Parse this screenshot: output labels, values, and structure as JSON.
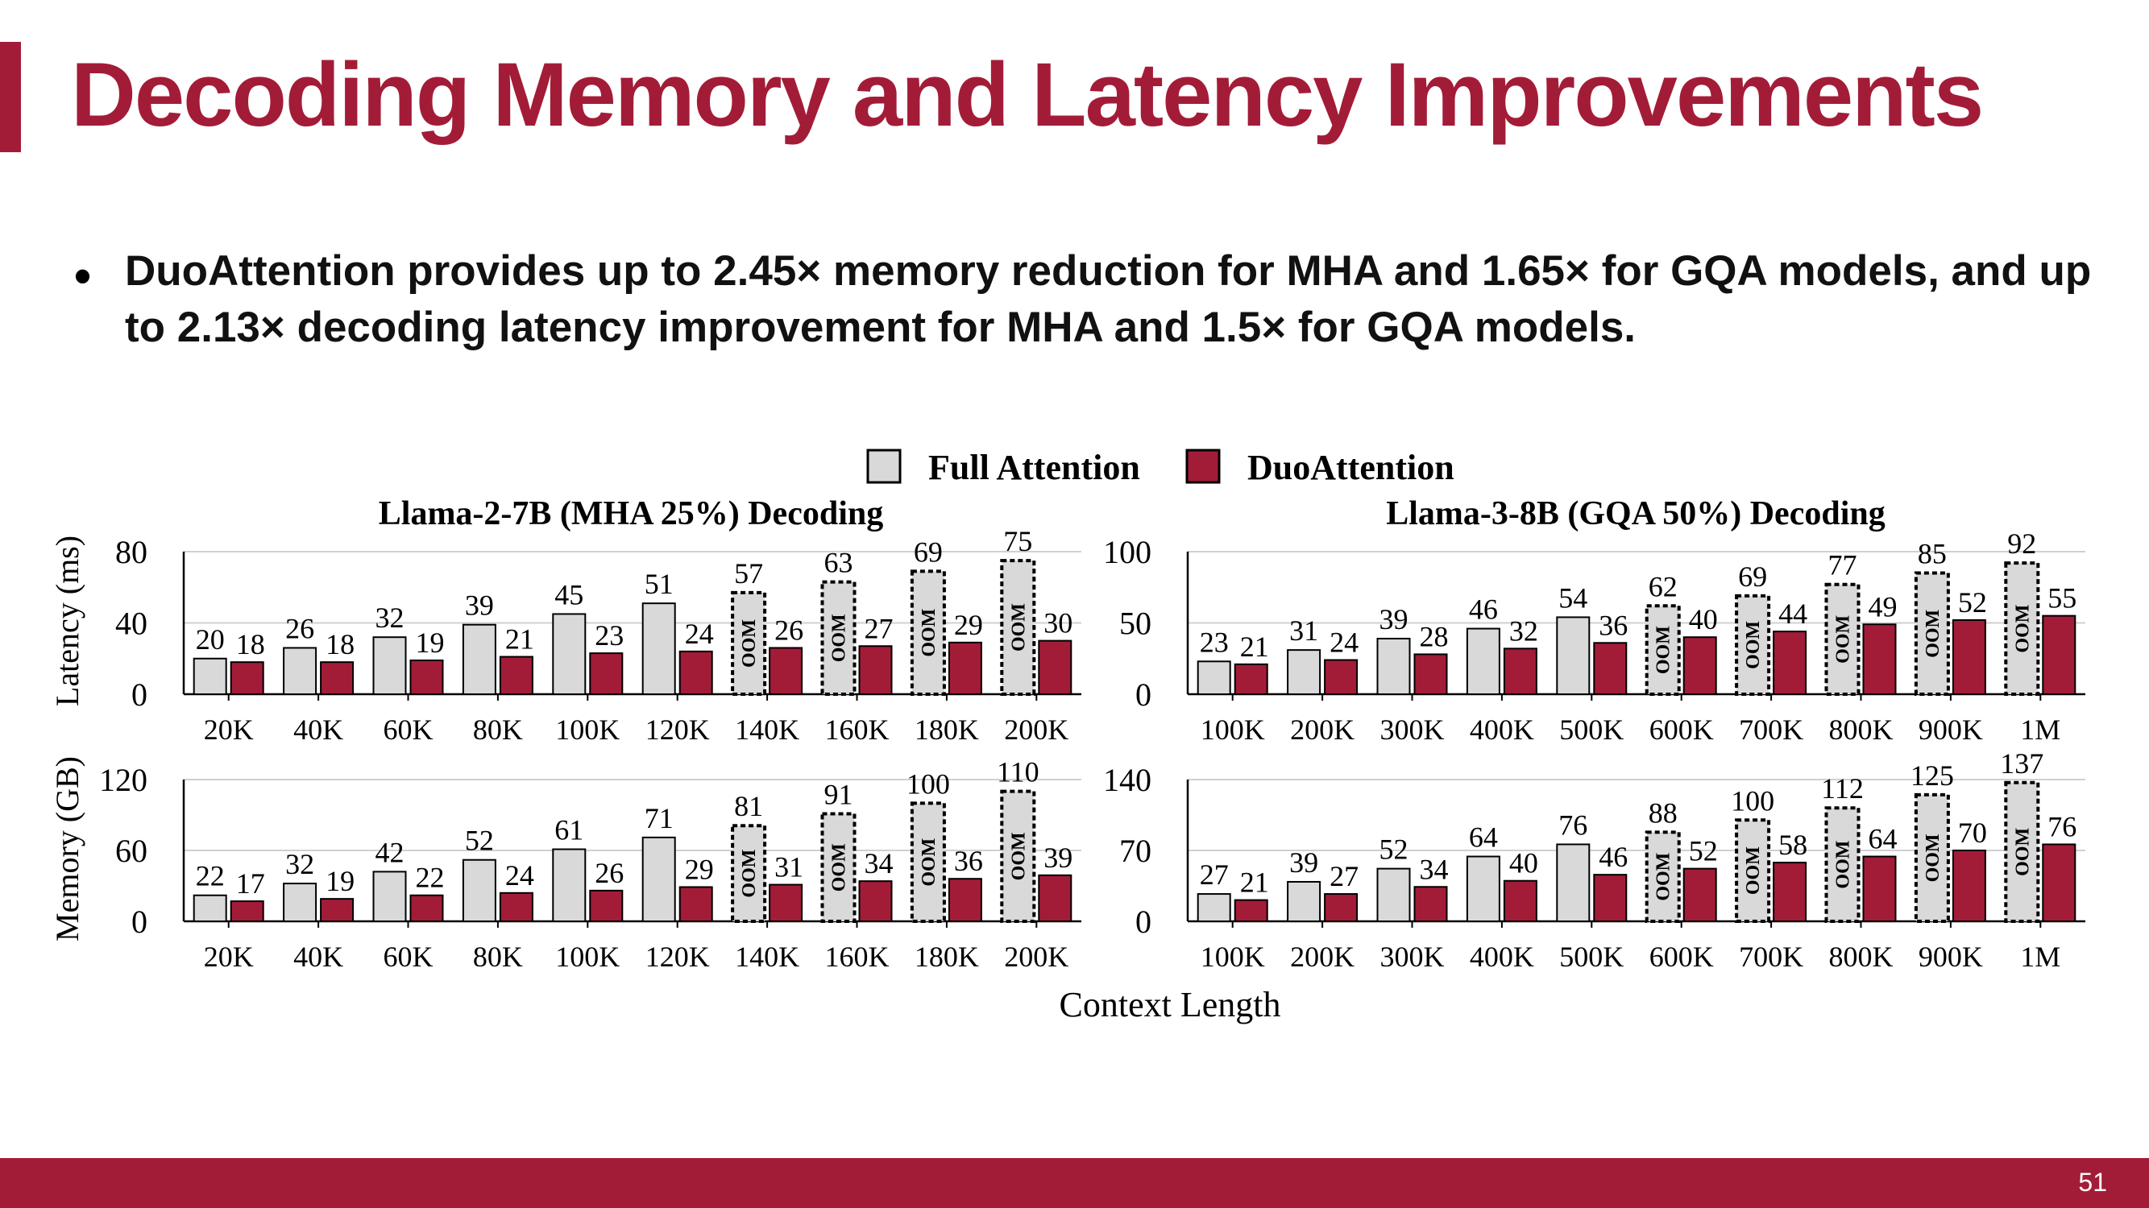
{
  "slide": {
    "title": "Decoding Memory and Latency Improvements",
    "bullet": "DuoAttention provides up to 2.45× memory reduction for MHA and 1.65× for GQA models, and up to 2.13× decoding latency improvement for MHA and 1.5× for GQA models.",
    "page_number": "51"
  },
  "colors": {
    "accent": "#a31c37",
    "full_fill": "#d9d9d9",
    "duo_fill": "#a31c37"
  },
  "chart_data": [
    {
      "type": "bar",
      "id": "llama2-latency",
      "title": "Llama-2-7B (MHA 25%) Decoding",
      "ylabel": "Latency (ms)",
      "xlabel": "Context Length",
      "categories": [
        "20K",
        "40K",
        "60K",
        "80K",
        "100K",
        "120K",
        "140K",
        "160K",
        "180K",
        "200K"
      ],
      "ylim": [
        0,
        80
      ],
      "yticks": [
        0,
        40,
        80
      ],
      "oom_label": "OOM",
      "series": [
        {
          "name": "Full Attention",
          "values": [
            20,
            26,
            32,
            39,
            45,
            51,
            57,
            63,
            69,
            75
          ],
          "oom": [
            false,
            false,
            false,
            false,
            false,
            false,
            true,
            true,
            true,
            true
          ]
        },
        {
          "name": "DuoAttention",
          "values": [
            18,
            18,
            19,
            21,
            23,
            24,
            26,
            27,
            29,
            30
          ]
        }
      ]
    },
    {
      "type": "bar",
      "id": "llama3-latency",
      "title": "Llama-3-8B (GQA 50%) Decoding",
      "ylabel": "Latency (ms)",
      "xlabel": "Context Length",
      "categories": [
        "100K",
        "200K",
        "300K",
        "400K",
        "500K",
        "600K",
        "700K",
        "800K",
        "900K",
        "1M"
      ],
      "ylim": [
        0,
        100
      ],
      "yticks": [
        0,
        50,
        100
      ],
      "oom_label": "OOM",
      "series": [
        {
          "name": "Full Attention",
          "values": [
            23,
            31,
            39,
            46,
            54,
            62,
            69,
            77,
            85,
            92
          ],
          "oom": [
            false,
            false,
            false,
            false,
            false,
            true,
            true,
            true,
            true,
            true
          ]
        },
        {
          "name": "DuoAttention",
          "values": [
            21,
            24,
            28,
            32,
            36,
            40,
            44,
            49,
            52,
            55
          ]
        }
      ]
    },
    {
      "type": "bar",
      "id": "llama2-memory",
      "title": "Llama-2-7B (MHA 25%) Decoding",
      "ylabel": "Memory (GB)",
      "xlabel": "Context Length",
      "categories": [
        "20K",
        "40K",
        "60K",
        "80K",
        "100K",
        "120K",
        "140K",
        "160K",
        "180K",
        "200K"
      ],
      "ylim": [
        0,
        120
      ],
      "yticks": [
        0,
        60,
        120
      ],
      "oom_label": "OOM",
      "series": [
        {
          "name": "Full Attention",
          "values": [
            22,
            32,
            42,
            52,
            61,
            71,
            81,
            91,
            100,
            110
          ],
          "oom": [
            false,
            false,
            false,
            false,
            false,
            false,
            true,
            true,
            true,
            true
          ]
        },
        {
          "name": "DuoAttention",
          "values": [
            17,
            19,
            22,
            24,
            26,
            29,
            31,
            34,
            36,
            39
          ]
        }
      ]
    },
    {
      "type": "bar",
      "id": "llama3-memory",
      "title": "Llama-3-8B (GQA 50%) Decoding",
      "ylabel": "Memory (GB)",
      "xlabel": "Context Length",
      "categories": [
        "100K",
        "200K",
        "300K",
        "400K",
        "500K",
        "600K",
        "700K",
        "800K",
        "900K",
        "1M"
      ],
      "ylim": [
        0,
        140
      ],
      "yticks": [
        0,
        70,
        140
      ],
      "oom_label": "OOM",
      "series": [
        {
          "name": "Full Attention",
          "values": [
            27,
            39,
            52,
            64,
            76,
            88,
            100,
            112,
            125,
            137
          ],
          "oom": [
            false,
            false,
            false,
            false,
            false,
            true,
            true,
            true,
            true,
            true
          ]
        },
        {
          "name": "DuoAttention",
          "values": [
            21,
            27,
            34,
            40,
            46,
            52,
            58,
            64,
            70,
            76
          ]
        }
      ]
    }
  ],
  "legend": {
    "items": [
      {
        "label": "Full Attention"
      },
      {
        "label": "DuoAttention"
      }
    ]
  },
  "figure": {
    "left_title": "Llama-2-7B (MHA 25%) Decoding",
    "right_title": "Llama-3-8B (GQA 50%) Decoding",
    "ylabel_top": "Latency (ms)",
    "ylabel_bottom": "Memory (GB)",
    "xlabel": "Context Length"
  }
}
